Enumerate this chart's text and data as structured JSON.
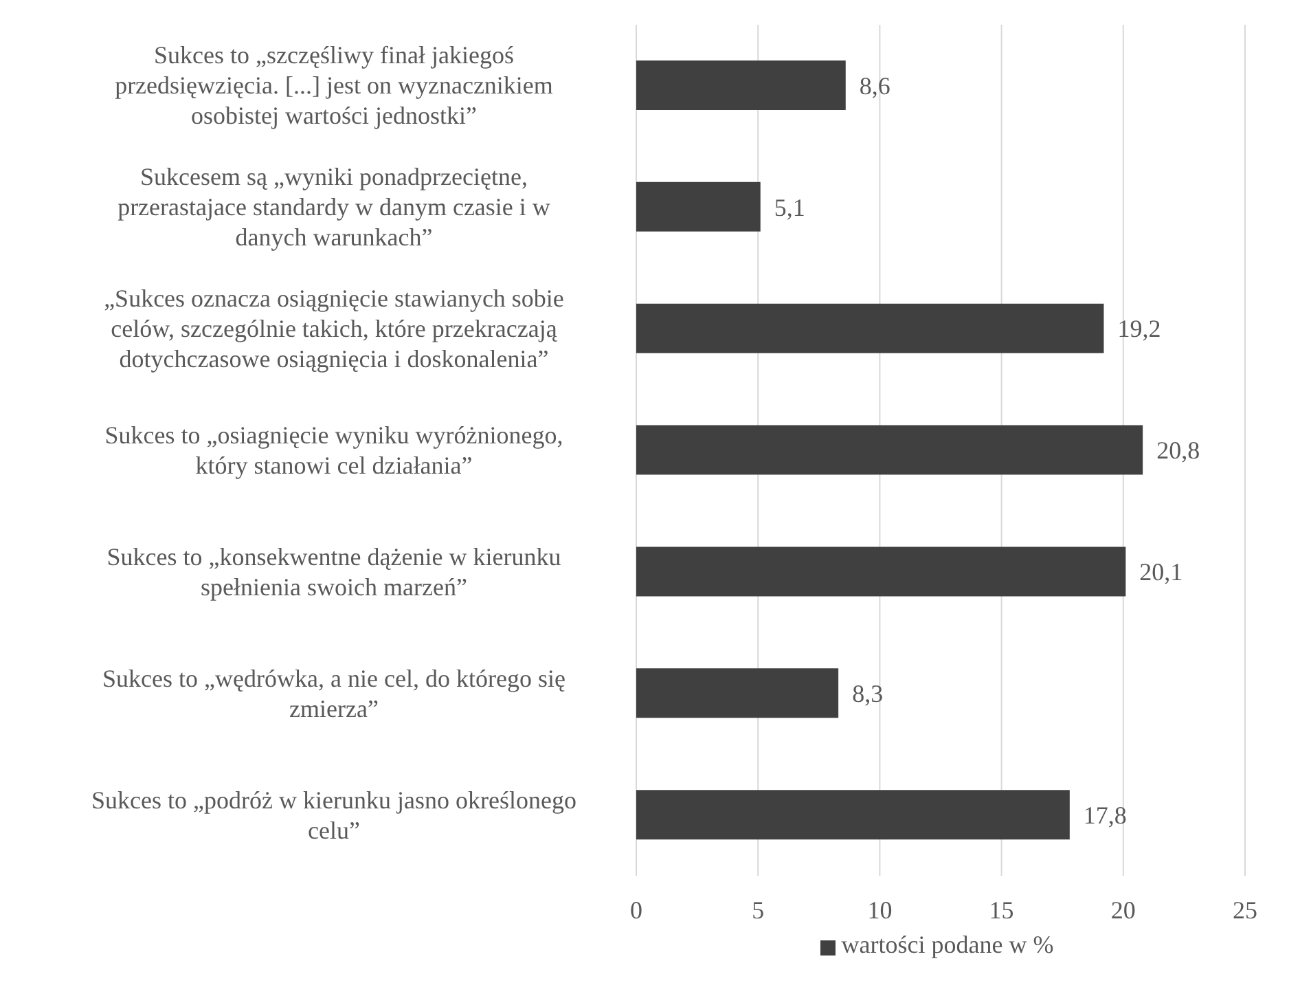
{
  "chart_data": {
    "type": "bar",
    "orientation": "horizontal",
    "categories": [
      "Sukces to „szczęśliwy finał jakiegoś przedsięwzięcia. [...] jest on wyznacznikiem osobistej wartości jednostki”",
      "Sukcesem są „wyniki ponadprzeciętne, przerastajace standardy w danym czasie i w danych warunkach”",
      "„Sukces oznacza osiągnięcie stawianych sobie celów, szczególnie takich, które przekraczają dotychczasowe osiągnięcia i doskonalenia”",
      "Sukces to „osiagnięcie wyniku wyróżnionego, który stanowi cel działania”",
      "Sukces to „konsekwentne dążenie w kierunku spełnienia swoich marzeń”",
      "Sukces to „wędrówka, a nie cel, do którego się zmierza”",
      "Sukces to „podróż w kierunku jasno określonego celu”"
    ],
    "series": [
      {
        "name": "wartości podane w %",
        "color": "#404040",
        "values": [
          8.6,
          5.1,
          19.2,
          20.8,
          20.1,
          8.3,
          17.8
        ],
        "value_labels": [
          "8,6",
          "5,1",
          "19,2",
          "20,8",
          "20,1",
          "8,3",
          "17,8"
        ]
      }
    ],
    "xlim": [
      0,
      25
    ],
    "xticks": [
      0,
      5,
      10,
      15,
      20,
      25
    ],
    "grid": "x",
    "legend": "bottom"
  }
}
